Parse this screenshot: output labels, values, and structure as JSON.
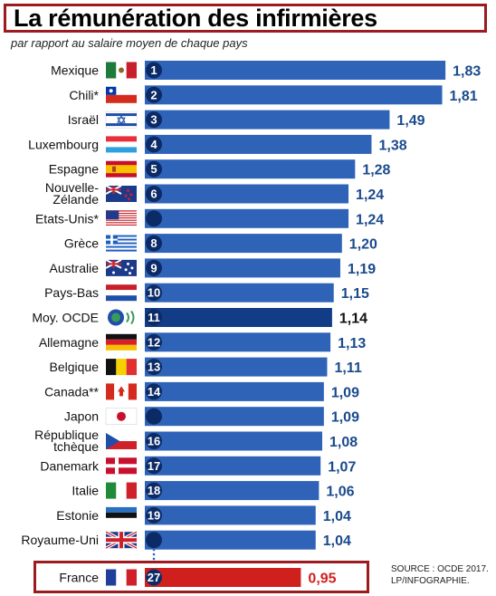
{
  "title": "La rémunération des infirmières",
  "subtitle": "par rapport au salaire moyen de chaque pays",
  "source_line1": "SOURCE : OCDE 2017.",
  "source_line2": "LP/INFOGRAPHIE.",
  "colors": {
    "bar": "#2e63b8",
    "bar_dark": "#123c86",
    "highlight": "#d0201e",
    "value_text": "#1a4a8c",
    "frame": "#9b1b1f"
  },
  "chart_data": {
    "type": "bar",
    "orientation": "horizontal",
    "title": "La rémunération des infirmières",
    "subtitle": "par rapport au salaire moyen de chaque pays",
    "rows": [
      {
        "country": [
          "Mexique"
        ],
        "rank": "1",
        "value": 1.83,
        "value_label": "1,83",
        "flag": "mexico-flag"
      },
      {
        "country": [
          "Chili*"
        ],
        "rank": "2",
        "value": 1.81,
        "value_label": "1,81",
        "flag": "chile-flag"
      },
      {
        "country": [
          "Israël"
        ],
        "rank": "3",
        "value": 1.49,
        "value_label": "1,49",
        "flag": "israel-flag"
      },
      {
        "country": [
          "Luxembourg"
        ],
        "rank": "4",
        "value": 1.38,
        "value_label": "1,38",
        "flag": "luxembourg-flag"
      },
      {
        "country": [
          "Espagne"
        ],
        "rank": "5",
        "value": 1.28,
        "value_label": "1,28",
        "flag": "spain-flag"
      },
      {
        "country": [
          "Nouvelle-",
          "Zélande"
        ],
        "rank": "6",
        "value": 1.24,
        "value_label": "1,24",
        "flag": "new-zealand-flag"
      },
      {
        "country": [
          "Etats-Unis*"
        ],
        "rank": "",
        "value": 1.24,
        "value_label": "1,24",
        "flag": "usa-flag"
      },
      {
        "country": [
          "Grèce"
        ],
        "rank": "8",
        "value": 1.2,
        "value_label": "1,20",
        "flag": "greece-flag"
      },
      {
        "country": [
          "Australie"
        ],
        "rank": "9",
        "value": 1.19,
        "value_label": "1,19",
        "flag": "australia-flag"
      },
      {
        "country": [
          "Pays-Bas"
        ],
        "rank": "10",
        "value": 1.15,
        "value_label": "1,15",
        "flag": "netherlands-flag"
      },
      {
        "country": [
          "Moy. OCDE"
        ],
        "rank": "11",
        "value": 1.14,
        "value_label": "1,14",
        "flag": "oecd-logo",
        "emphasis": "oecd"
      },
      {
        "country": [
          "Allemagne"
        ],
        "rank": "12",
        "value": 1.13,
        "value_label": "1,13",
        "flag": "germany-flag"
      },
      {
        "country": [
          "Belgique"
        ],
        "rank": "13",
        "value": 1.11,
        "value_label": "1,11",
        "flag": "belgium-flag"
      },
      {
        "country": [
          "Canada**"
        ],
        "rank": "14",
        "value": 1.09,
        "value_label": "1,09",
        "flag": "canada-flag"
      },
      {
        "country": [
          "Japon"
        ],
        "rank": "",
        "value": 1.09,
        "value_label": "1,09",
        "flag": "japan-flag"
      },
      {
        "country": [
          "République",
          "tchèque"
        ],
        "rank": "16",
        "value": 1.08,
        "value_label": "1,08",
        "flag": "czech-flag"
      },
      {
        "country": [
          "Danemark"
        ],
        "rank": "17",
        "value": 1.07,
        "value_label": "1,07",
        "flag": "denmark-flag"
      },
      {
        "country": [
          "Italie"
        ],
        "rank": "18",
        "value": 1.06,
        "value_label": "1,06",
        "flag": "italy-flag"
      },
      {
        "country": [
          "Estonie"
        ],
        "rank": "19",
        "value": 1.04,
        "value_label": "1,04",
        "flag": "estonia-flag"
      },
      {
        "country": [
          "Royaume-Uni"
        ],
        "rank": "",
        "value": 1.04,
        "value_label": "1,04",
        "flag": "uk-flag"
      },
      {
        "country": [
          "France"
        ],
        "rank": "27",
        "value": 0.95,
        "value_label": "0,95",
        "flag": "france-flag",
        "emphasis": "highlight"
      }
    ]
  }
}
